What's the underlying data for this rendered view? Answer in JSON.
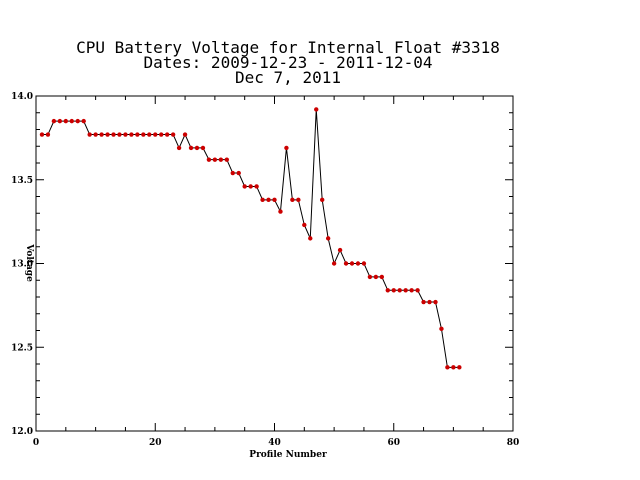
{
  "chart_data": {
    "type": "line",
    "title_lines": [
      "CPU Battery Voltage for Internal Float #3318",
      "Dates:  2009-12-23 -  2011-12-04",
      "Dec  7, 2011"
    ],
    "xlabel": "Profile Number",
    "ylabel": "Voltage",
    "xlim": [
      0,
      80
    ],
    "ylim": [
      12.0,
      14.0
    ],
    "x_ticks": [
      0,
      20,
      40,
      60,
      80
    ],
    "x_tick_labels": [
      "0",
      "20",
      "40",
      "60",
      "80"
    ],
    "y_ticks": [
      12.0,
      12.5,
      13.0,
      13.5,
      14.0
    ],
    "y_tick_labels": [
      "12.0",
      "12.5",
      "13.0",
      "13.5",
      "14.0"
    ],
    "grid": false,
    "line_color": "#000000",
    "marker_color": "#cc0000",
    "series": [
      {
        "x": [
          1,
          2,
          3,
          4,
          5,
          6,
          7,
          8,
          9,
          10,
          11,
          12,
          13,
          14,
          15,
          16,
          17,
          18,
          19,
          20,
          21,
          22,
          23,
          24,
          25,
          26,
          27,
          28,
          29,
          30,
          31,
          32,
          33,
          34,
          35,
          36,
          37,
          38,
          39,
          40,
          41,
          42,
          43,
          44,
          45,
          46,
          47,
          48,
          49,
          50,
          51,
          52,
          53,
          54,
          55,
          56,
          57,
          58,
          59,
          60,
          61,
          62,
          63,
          64,
          65,
          66,
          67,
          68,
          69,
          70,
          71
        ],
        "y": [
          13.77,
          13.77,
          13.85,
          13.85,
          13.85,
          13.85,
          13.85,
          13.85,
          13.77,
          13.77,
          13.77,
          13.77,
          13.77,
          13.77,
          13.77,
          13.77,
          13.77,
          13.77,
          13.77,
          13.77,
          13.77,
          13.77,
          13.77,
          13.69,
          13.77,
          13.69,
          13.69,
          13.69,
          13.62,
          13.62,
          13.62,
          13.62,
          13.54,
          13.54,
          13.46,
          13.46,
          13.46,
          13.38,
          13.38,
          13.38,
          13.31,
          13.69,
          13.38,
          13.38,
          13.23,
          13.15,
          13.92,
          13.38,
          13.15,
          13.0,
          13.08,
          13.0,
          13.0,
          13.0,
          13.0,
          12.92,
          12.92,
          12.92,
          12.84,
          12.84,
          12.84,
          12.84,
          12.84,
          12.84,
          12.77,
          12.77,
          12.77,
          12.61,
          12.38,
          12.38,
          12.38
        ]
      }
    ]
  }
}
